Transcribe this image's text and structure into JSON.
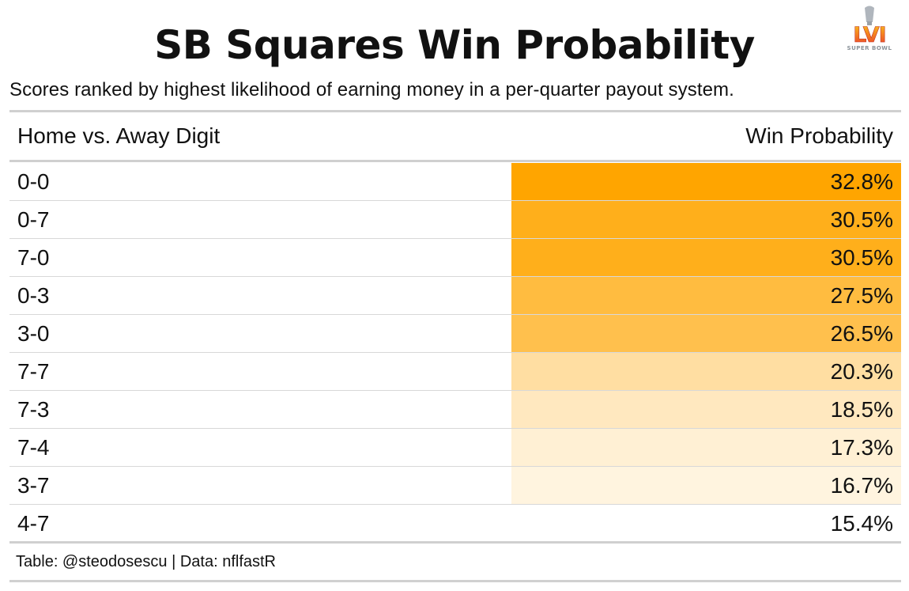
{
  "header": {
    "title": "SB Squares Win Probability",
    "subtitle": "Scores ranked by highest likelihood of earning money in a per-quarter payout system.",
    "logo": {
      "icon": "super-bowl-lvi-logo",
      "text": "LVI",
      "caption": "SUPER BOWL",
      "colors": [
        "#e63a2e",
        "#f47b20",
        "#f7c31b",
        "#b0b6bd"
      ]
    }
  },
  "chart_data": {
    "type": "table",
    "columns": [
      "Home vs. Away Digit",
      "Win Probability"
    ],
    "rows": [
      {
        "score": "0-0",
        "probability": "32.8%",
        "value": 32.8
      },
      {
        "score": "0-7",
        "probability": "30.5%",
        "value": 30.5
      },
      {
        "score": "7-0",
        "probability": "30.5%",
        "value": 30.5
      },
      {
        "score": "0-3",
        "probability": "27.5%",
        "value": 27.5
      },
      {
        "score": "3-0",
        "probability": "26.5%",
        "value": 26.5
      },
      {
        "score": "7-7",
        "probability": "20.3%",
        "value": 20.3
      },
      {
        "score": "7-3",
        "probability": "18.5%",
        "value": 18.5
      },
      {
        "score": "7-4",
        "probability": "17.3%",
        "value": 17.3
      },
      {
        "score": "3-7",
        "probability": "16.7%",
        "value": 16.7
      },
      {
        "score": "4-7",
        "probability": "15.4%",
        "value": 15.4
      }
    ],
    "color_scale": {
      "low_color": "#ffffff",
      "high_color": "#ffa500",
      "domain": [
        15.4,
        32.8
      ]
    }
  },
  "footer": {
    "source": "Table: @steodosescu | Data: nflfastR"
  }
}
